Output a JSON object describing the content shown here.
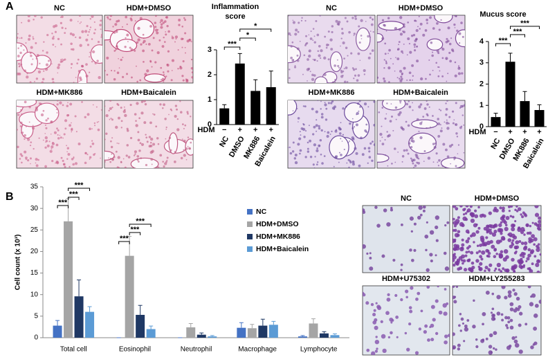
{
  "panel_labels": [
    "A",
    "B"
  ],
  "image_labels": [
    "NC",
    "HDM+DMSO",
    "HDM+MK886",
    "HDM+Baicalein",
    "NC",
    "HDM+DMSO",
    "HDM+MK886",
    "HDM+Baicalein",
    "NC",
    "HDM+DMSO",
    "HDM+U75302",
    "HDM+LY255283"
  ],
  "chart_data": [
    {
      "type": "bar",
      "title": "Inflammation score",
      "categories": [
        "NC",
        "DMSO",
        "MK886",
        "Baicalein"
      ],
      "group_label": "HDM",
      "group_signs": [
        "−",
        "+",
        "+",
        "+"
      ],
      "values": [
        0.65,
        2.45,
        1.35,
        1.5
      ],
      "errors": [
        0.15,
        0.4,
        0.45,
        0.65
      ],
      "color": "#000000",
      "ylim": [
        0,
        3
      ],
      "yticks": [
        0,
        1,
        2,
        3
      ],
      "annotations": [
        "***",
        "*",
        "*"
      ]
    },
    {
      "type": "bar",
      "title": "Mucus score",
      "categories": [
        "NC",
        "DMSO",
        "MK886",
        "Baicalein"
      ],
      "group_label": "HDM",
      "group_signs": [
        "−",
        "+",
        "+",
        "+"
      ],
      "values": [
        0.45,
        3.05,
        1.2,
        0.78
      ],
      "errors": [
        0.18,
        0.4,
        0.45,
        0.25
      ],
      "color": "#000000",
      "ylim": [
        0,
        4
      ],
      "yticks": [
        0,
        1,
        2,
        3,
        4
      ],
      "annotations": [
        "***",
        "***",
        "***"
      ]
    },
    {
      "type": "grouped-bar",
      "y_label": "Cell count (x 10³)",
      "categories": [
        "Total cell",
        "Eosinophil",
        "Neutrophil",
        "Macrophage",
        "Lymphocyte"
      ],
      "series": [
        {
          "name": "NC",
          "color": "#4472c4",
          "values": [
            2.8,
            0,
            0,
            2.3,
            0.3
          ],
          "errors": [
            1.2,
            0,
            0,
            1.2,
            0.2
          ]
        },
        {
          "name": "HDM+DMSO",
          "color": "#a5a5a5",
          "values": [
            27,
            19,
            2.4,
            2.2,
            3.3
          ],
          "errors": [
            5.3,
            4.5,
            0.9,
            0.9,
            1.1
          ]
        },
        {
          "name": "HDM+MK886",
          "color": "#1f3864",
          "values": [
            9.6,
            5.3,
            0.7,
            2.8,
            1
          ],
          "errors": [
            3.8,
            2.2,
            0.4,
            1.5,
            0.4
          ]
        },
        {
          "name": "HDM+Baicalein",
          "color": "#5b9bd5",
          "values": [
            6,
            2,
            0.3,
            3,
            0.6
          ],
          "errors": [
            1.2,
            0.7,
            0.2,
            0.8,
            0.3
          ]
        }
      ],
      "ylim": [
        0,
        35
      ],
      "yticks": [
        0,
        5,
        10,
        15,
        20,
        25,
        30,
        35
      ],
      "legend": "top-right",
      "annotations": [
        "***",
        "***",
        "***",
        "***",
        "***",
        "***"
      ]
    }
  ]
}
